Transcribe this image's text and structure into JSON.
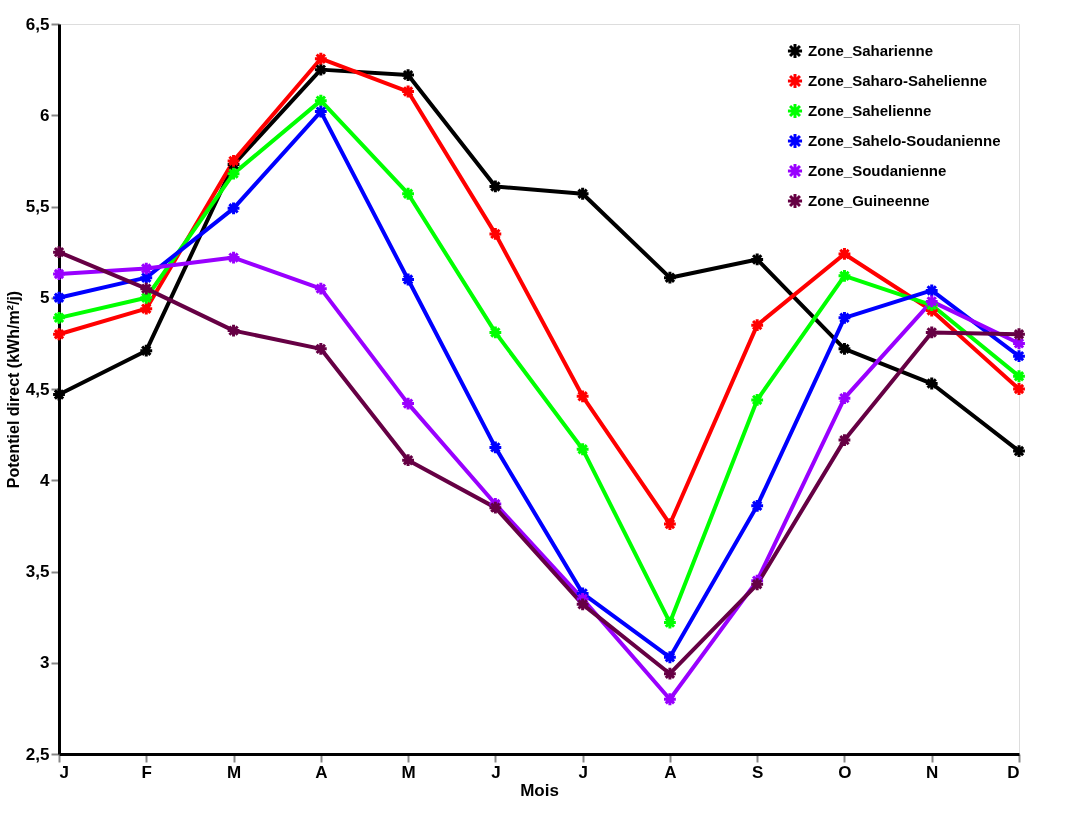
{
  "chart_data": {
    "type": "line",
    "xlabel": "Mois",
    "ylabel": "Potentiel direct (kWh/m²/j)",
    "categories": [
      "J",
      "F",
      "M",
      "A",
      "M",
      "J",
      "J",
      "A",
      "S",
      "O",
      "N",
      "D"
    ],
    "ylim": [
      2.5,
      6.5
    ],
    "yticks": [
      {
        "value": 2.5,
        "label": "2,5"
      },
      3,
      {
        "value": 3.5,
        "label": "3,5"
      },
      4,
      {
        "value": 4.5,
        "label": "4,5"
      },
      5,
      {
        "value": 5.5,
        "label": "5,5"
      },
      6,
      {
        "value": 6.5,
        "label": "6,5"
      }
    ],
    "grid": false,
    "legend": "top right",
    "marker": "cross",
    "line_style": "solid",
    "series": [
      {
        "name": "Zone_Saharienne",
        "color": "#000000",
        "values": [
          4.47,
          4.71,
          5.73,
          6.25,
          6.22,
          5.61,
          5.57,
          5.11,
          5.21,
          4.72,
          4.53,
          4.16
        ]
      },
      {
        "name": "Zone_Saharo-Sahelienne",
        "color": "#ff0000",
        "values": [
          4.8,
          4.94,
          5.75,
          6.31,
          6.13,
          5.35,
          4.46,
          3.76,
          4.85,
          5.24,
          4.93,
          4.5
        ]
      },
      {
        "name": "Zone_Sahelienne",
        "color": "#00ff00",
        "values": [
          4.89,
          5.0,
          5.68,
          6.08,
          5.57,
          4.81,
          4.17,
          3.22,
          4.44,
          5.12,
          4.96,
          4.57
        ]
      },
      {
        "name": "Zone_Sahelo-Soudanienne",
        "color": "#0000ff",
        "values": [
          5.0,
          5.11,
          5.49,
          6.02,
          5.1,
          4.18,
          3.38,
          3.03,
          3.86,
          4.89,
          5.04,
          4.68
        ]
      },
      {
        "name": "Zone_Soudanienne",
        "color": "#9900ff",
        "values": [
          5.13,
          5.16,
          5.22,
          5.05,
          4.42,
          3.87,
          3.35,
          2.8,
          3.45,
          4.45,
          4.98,
          4.75
        ]
      },
      {
        "name": "Zone_Guineenne",
        "color": "#660044",
        "values": [
          5.25,
          5.05,
          4.82,
          4.72,
          4.11,
          3.85,
          3.32,
          2.94,
          3.43,
          4.22,
          4.81,
          4.8
        ]
      }
    ]
  }
}
